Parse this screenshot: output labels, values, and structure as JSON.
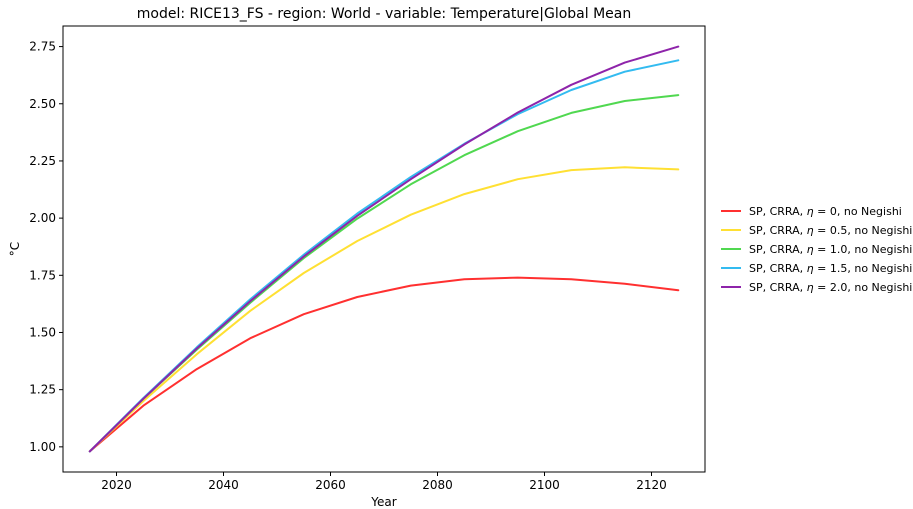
{
  "chart_data": {
    "type": "line",
    "title": "model: RICE13_FS - region: World - variable: Temperature|Global Mean",
    "xlabel": "Year",
    "ylabel": "°C",
    "xlim": [
      2010,
      2130
    ],
    "ylim": [
      0.89,
      2.84
    ],
    "xticks": [
      2020,
      2040,
      2060,
      2080,
      2100,
      2120
    ],
    "yticks": [
      1.0,
      1.25,
      1.5,
      1.75,
      2.0,
      2.25,
      2.5,
      2.75
    ],
    "ytick_labels": [
      "1.00",
      "1.25",
      "1.50",
      "1.75",
      "2.00",
      "2.25",
      "2.50",
      "2.75"
    ],
    "grid": false,
    "legend_placement": "outside-right",
    "x": [
      2015,
      2025,
      2035,
      2045,
      2055,
      2065,
      2075,
      2085,
      2095,
      2105,
      2115,
      2125
    ],
    "series": [
      {
        "legend_prefix": "SP, CRRA,",
        "eta_symbol": "η",
        "eta_text": " = 0",
        "legend_suffix": ", no Negishi",
        "color": "#ff3030",
        "values": [
          0.98,
          1.18,
          1.34,
          1.475,
          1.58,
          1.655,
          1.705,
          1.733,
          1.74,
          1.733,
          1.713,
          1.685
        ]
      },
      {
        "legend_prefix": "SP, CRRA,",
        "eta_symbol": "η",
        "eta_text": " = 0.5",
        "legend_suffix": ", no Negishi",
        "color": "#ffe033",
        "values": [
          0.98,
          1.2,
          1.405,
          1.595,
          1.76,
          1.9,
          2.015,
          2.105,
          2.17,
          2.21,
          2.222,
          2.213
        ]
      },
      {
        "legend_prefix": "SP, CRRA,",
        "eta_symbol": "η",
        "eta_text": " = 1.0",
        "legend_suffix": ", no Negishi",
        "color": "#50d850",
        "values": [
          0.98,
          1.21,
          1.425,
          1.63,
          1.825,
          1.998,
          2.148,
          2.275,
          2.38,
          2.46,
          2.512,
          2.538
        ]
      },
      {
        "legend_prefix": "SP, CRRA,",
        "eta_symbol": "η",
        "eta_text": " = 1.5",
        "legend_suffix": ", no Negishi",
        "color": "#33bbf0",
        "values": [
          0.98,
          1.213,
          1.435,
          1.645,
          1.84,
          2.02,
          2.18,
          2.325,
          2.455,
          2.56,
          2.64,
          2.69
        ]
      },
      {
        "legend_prefix": "SP, CRRA,",
        "eta_symbol": "η",
        "eta_text": " = 2.0",
        "legend_suffix": ", no Negishi",
        "color": "#8e24aa",
        "values": [
          0.98,
          1.21,
          1.43,
          1.637,
          1.832,
          2.01,
          2.17,
          2.322,
          2.462,
          2.583,
          2.68,
          2.75
        ]
      }
    ]
  }
}
